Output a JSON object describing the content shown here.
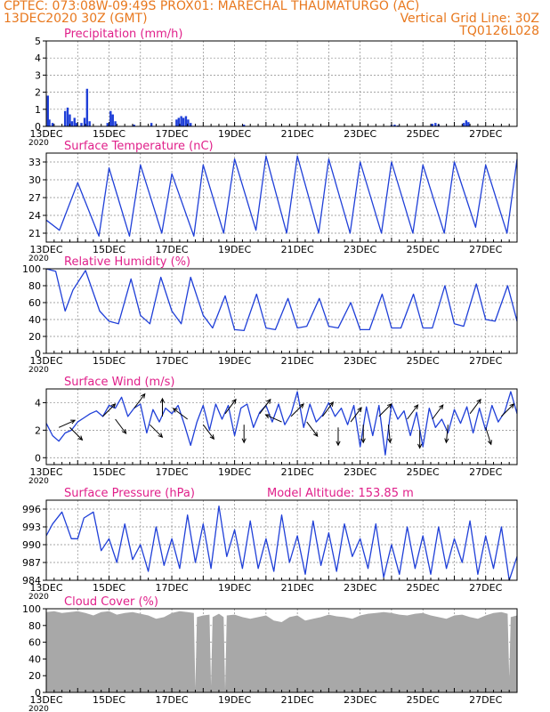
{
  "header": {
    "left_line1": "CPTEC:   073:08W-09:49S   PROX01: MARECHAL THAUMATURGO (AC)",
    "left_line2": "13DEC2020 30Z (GMT)",
    "right_line2": "Vertical Grid Line: 30Z",
    "right_line3": "TQ0126L028"
  },
  "colors": {
    "header": "#e8781e",
    "titles": "#e0208a",
    "series": "#1f3fd8",
    "cloud": "#a8a8a8",
    "arrow": "#000000",
    "grid": "#888888"
  },
  "x_axis": {
    "start_day": 13,
    "end_day": 28,
    "tick_labels": [
      "13DEC",
      "15DEC",
      "17DEC",
      "19DEC",
      "21DEC",
      "23DEC",
      "25DEC",
      "27DEC"
    ],
    "year_label": "2020"
  },
  "chart_data": [
    {
      "type": "bar",
      "title": "Precipitation (mm/h)",
      "ylim": [
        0,
        5
      ],
      "yticks": [
        "0",
        "1",
        "2",
        "3",
        "4",
        "5"
      ],
      "grid": true,
      "bars": [
        {
          "x": 13.05,
          "y": 1.8
        },
        {
          "x": 13.1,
          "y": 0.4
        },
        {
          "x": 13.2,
          "y": 0.2
        },
        {
          "x": 13.6,
          "y": 0.9
        },
        {
          "x": 13.68,
          "y": 1.1
        },
        {
          "x": 13.75,
          "y": 0.7
        },
        {
          "x": 13.82,
          "y": 0.3
        },
        {
          "x": 13.9,
          "y": 0.5
        },
        {
          "x": 13.97,
          "y": 0.2
        },
        {
          "x": 14.12,
          "y": 0.2
        },
        {
          "x": 14.22,
          "y": 0.5
        },
        {
          "x": 14.3,
          "y": 2.2
        },
        {
          "x": 14.38,
          "y": 0.3
        },
        {
          "x": 14.95,
          "y": 0.2
        },
        {
          "x": 15.05,
          "y": 0.9
        },
        {
          "x": 15.12,
          "y": 0.7
        },
        {
          "x": 15.2,
          "y": 0.3
        },
        {
          "x": 15.8,
          "y": 0.1
        },
        {
          "x": 16.35,
          "y": 0.2
        },
        {
          "x": 17.15,
          "y": 0.4
        },
        {
          "x": 17.22,
          "y": 0.5
        },
        {
          "x": 17.3,
          "y": 0.6
        },
        {
          "x": 17.37,
          "y": 0.5
        },
        {
          "x": 17.45,
          "y": 0.6
        },
        {
          "x": 17.52,
          "y": 0.4
        },
        {
          "x": 17.6,
          "y": 0.2
        },
        {
          "x": 19.3,
          "y": 0.1
        },
        {
          "x": 24.0,
          "y": 0.08
        },
        {
          "x": 24.1,
          "y": 0.1
        },
        {
          "x": 24.2,
          "y": 0.05
        },
        {
          "x": 25.3,
          "y": 0.15
        },
        {
          "x": 25.4,
          "y": 0.2
        },
        {
          "x": 25.5,
          "y": 0.12
        },
        {
          "x": 26.3,
          "y": 0.2
        },
        {
          "x": 26.38,
          "y": 0.35
        },
        {
          "x": 26.45,
          "y": 0.25
        }
      ]
    },
    {
      "type": "line",
      "title": "Surface Temperature (nC)",
      "ylim": [
        19.5,
        34.5
      ],
      "yticks": [
        "21",
        "24",
        "27",
        "30",
        "33"
      ],
      "ytick_values": [
        21,
        24,
        27,
        30,
        33
      ],
      "grid": true,
      "series": [
        {
          "x": [
            13.0,
            13.42,
            14.0,
            14.68,
            15.0,
            15.65,
            16.0,
            16.68,
            17.0,
            17.7,
            18.0,
            18.65,
            19.0,
            19.68,
            20.0,
            20.66,
            21.0,
            21.68,
            22.0,
            22.68,
            23.0,
            23.68,
            24.0,
            24.68,
            25.0,
            25.68,
            26.0,
            26.68,
            27.0,
            27.68,
            28.0
          ],
          "y": [
            23.2,
            21.5,
            29.5,
            20.5,
            32.0,
            20.5,
            32.5,
            21.0,
            31.0,
            20.5,
            32.5,
            21.0,
            33.5,
            21.5,
            34.0,
            21.0,
            34.0,
            21.0,
            33.5,
            21.0,
            33.0,
            21.0,
            33.0,
            21.0,
            32.5,
            21.0,
            33.0,
            22.0,
            32.5,
            21.0,
            33.5
          ]
        }
      ]
    },
    {
      "type": "line",
      "title": "Relative Humidity (%)",
      "ylim": [
        0,
        100
      ],
      "yticks": [
        "0",
        "20",
        "40",
        "60",
        "80",
        "100"
      ],
      "ytick_values": [
        0,
        20,
        40,
        60,
        80,
        100
      ],
      "grid": true,
      "series": [
        {
          "x": [
            13.0,
            13.3,
            13.6,
            13.85,
            14.25,
            14.7,
            15.0,
            15.3,
            15.7,
            16.0,
            16.3,
            16.65,
            17.0,
            17.3,
            17.6,
            18.0,
            18.3,
            18.7,
            19.0,
            19.3,
            19.7,
            20.0,
            20.3,
            20.7,
            21.0,
            21.3,
            21.7,
            22.0,
            22.3,
            22.7,
            23.0,
            23.3,
            23.7,
            24.0,
            24.3,
            24.7,
            25.0,
            25.3,
            25.7,
            26.0,
            26.3,
            26.7,
            27.0,
            27.3,
            27.7,
            28.0
          ],
          "y": [
            100,
            97,
            50,
            75,
            98,
            50,
            38,
            35,
            88,
            45,
            35,
            90,
            50,
            35,
            90,
            45,
            30,
            68,
            28,
            27,
            70,
            30,
            28,
            65,
            30,
            32,
            65,
            32,
            30,
            60,
            28,
            28,
            70,
            30,
            30,
            70,
            30,
            30,
            80,
            35,
            32,
            82,
            40,
            38,
            80,
            38
          ]
        }
      ]
    },
    {
      "type": "line",
      "title": "Surface Wind (m/s)",
      "ylim": [
        -0.5,
        5
      ],
      "yticks": [
        "0",
        "2",
        "4"
      ],
      "ytick_values": [
        0,
        2,
        4
      ],
      "grid": true,
      "series": [
        {
          "x": [
            13.0,
            13.2,
            13.4,
            13.6,
            13.8,
            14.0,
            14.2,
            14.4,
            14.6,
            14.8,
            15.0,
            15.2,
            15.4,
            15.6,
            15.8,
            16.0,
            16.2,
            16.4,
            16.6,
            16.8,
            17.0,
            17.2,
            17.4,
            17.6,
            17.8,
            18.0,
            18.2,
            18.4,
            18.6,
            18.8,
            19.0,
            19.2,
            19.4,
            19.6,
            19.8,
            20.0,
            20.2,
            20.4,
            20.6,
            20.8,
            21.0,
            21.2,
            21.4,
            21.6,
            21.8,
            22.0,
            22.2,
            22.4,
            22.6,
            22.8,
            23.0,
            23.2,
            23.4,
            23.6,
            23.8,
            24.0,
            24.2,
            24.4,
            24.6,
            24.8,
            25.0,
            25.2,
            25.4,
            25.6,
            25.8,
            26.0,
            26.2,
            26.4,
            26.6,
            26.8,
            27.0,
            27.2,
            27.4,
            27.6,
            27.8,
            28.0
          ],
          "y": [
            2.5,
            1.6,
            1.2,
            1.8,
            2.0,
            2.6,
            2.9,
            3.2,
            3.4,
            3.0,
            3.8,
            3.6,
            4.4,
            3.0,
            3.6,
            3.9,
            1.8,
            3.5,
            2.6,
            3.6,
            3.2,
            3.8,
            2.4,
            0.9,
            2.6,
            3.8,
            2.0,
            3.9,
            2.8,
            3.8,
            1.6,
            3.6,
            3.9,
            2.2,
            3.3,
            3.8,
            2.6,
            3.9,
            2.4,
            3.2,
            4.8,
            2.2,
            3.9,
            2.6,
            3.1,
            4.0,
            3.0,
            3.6,
            2.4,
            3.8,
            0.8,
            3.7,
            1.6,
            3.8,
            0.2,
            3.9,
            2.8,
            3.4,
            1.6,
            3.3,
            0.8,
            3.6,
            2.2,
            2.8,
            1.8,
            3.5,
            2.5,
            3.7,
            1.8,
            3.6,
            2.0,
            3.8,
            2.6,
            3.3,
            4.8,
            3.2
          ]
        }
      ],
      "vectors": [
        {
          "x": 13.4,
          "speed": 2.2,
          "dx": 0.9,
          "dy": 0.4
        },
        {
          "x": 13.75,
          "speed": 2.2,
          "dx": 0.7,
          "dy": -0.7
        },
        {
          "x": 14.8,
          "speed": 3.0,
          "dx": 0.7,
          "dy": 0.7
        },
        {
          "x": 15.2,
          "speed": 2.8,
          "dx": 0.6,
          "dy": -0.8
        },
        {
          "x": 15.8,
          "speed": 3.6,
          "dx": 0.6,
          "dy": 0.8
        },
        {
          "x": 16.3,
          "speed": 2.4,
          "dx": 0.7,
          "dy": -0.7
        },
        {
          "x": 16.7,
          "speed": 3.0,
          "dx": 0.0,
          "dy": 1.0
        },
        {
          "x": 17.5,
          "speed": 2.8,
          "dx": -0.8,
          "dy": 0.6
        },
        {
          "x": 18.0,
          "speed": 2.4,
          "dx": 0.6,
          "dy": -0.8
        },
        {
          "x": 18.7,
          "speed": 3.2,
          "dx": 0.6,
          "dy": 0.8
        },
        {
          "x": 19.3,
          "speed": 2.4,
          "dx": 0.0,
          "dy": -1.0
        },
        {
          "x": 19.8,
          "speed": 3.2,
          "dx": 0.6,
          "dy": 0.8
        },
        {
          "x": 20.5,
          "speed": 2.6,
          "dx": -0.9,
          "dy": 0.4
        },
        {
          "x": 20.8,
          "speed": 3.0,
          "dx": 0.7,
          "dy": 0.7
        },
        {
          "x": 21.3,
          "speed": 2.6,
          "dx": 0.6,
          "dy": -0.8
        },
        {
          "x": 21.8,
          "speed": 3.0,
          "dx": 0.6,
          "dy": 0.8
        },
        {
          "x": 22.3,
          "speed": 2.2,
          "dx": 0.0,
          "dy": -1.0
        },
        {
          "x": 22.7,
          "speed": 2.6,
          "dx": 0.6,
          "dy": 0.8
        },
        {
          "x": 23.1,
          "speed": 2.4,
          "dx": 0.0,
          "dy": -1.0
        },
        {
          "x": 23.6,
          "speed": 3.0,
          "dx": 0.7,
          "dy": 0.7
        },
        {
          "x": 23.9,
          "speed": 2.4,
          "dx": 0.1,
          "dy": -1.0
        },
        {
          "x": 24.5,
          "speed": 2.8,
          "dx": 0.6,
          "dy": 0.8
        },
        {
          "x": 24.9,
          "speed": 2.0,
          "dx": 0.0,
          "dy": -1.0
        },
        {
          "x": 25.3,
          "speed": 2.8,
          "dx": 0.6,
          "dy": 0.8
        },
        {
          "x": 25.8,
          "speed": 2.4,
          "dx": -0.1,
          "dy": -1.0
        },
        {
          "x": 26.5,
          "speed": 3.2,
          "dx": 0.6,
          "dy": 0.8
        },
        {
          "x": 27.0,
          "speed": 2.2,
          "dx": 0.3,
          "dy": -0.95
        },
        {
          "x": 27.5,
          "speed": 3.0,
          "dx": 0.7,
          "dy": 0.7
        }
      ]
    },
    {
      "type": "line",
      "title": "Surface Pressure (hPa)",
      "annotation": "Model Altitude: 153.85 m",
      "ylim": [
        984,
        997.5
      ],
      "yticks": [
        "984",
        "987",
        "990",
        "993",
        "996"
      ],
      "ytick_values": [
        984,
        987,
        990,
        993,
        996
      ],
      "grid": true,
      "series": [
        {
          "x": [
            13.0,
            13.2,
            13.5,
            13.8,
            14.0,
            14.2,
            14.5,
            14.75,
            15.0,
            15.25,
            15.5,
            15.75,
            16.0,
            16.25,
            16.5,
            16.75,
            17.0,
            17.25,
            17.5,
            17.75,
            18.0,
            18.25,
            18.5,
            18.75,
            19.0,
            19.25,
            19.5,
            19.75,
            20.0,
            20.25,
            20.5,
            20.75,
            21.0,
            21.25,
            21.5,
            21.75,
            22.0,
            22.25,
            22.5,
            22.75,
            23.0,
            23.25,
            23.5,
            23.75,
            24.0,
            24.25,
            24.5,
            24.75,
            25.0,
            25.25,
            25.5,
            25.75,
            26.0,
            26.25,
            26.5,
            26.75,
            27.0,
            27.25,
            27.5,
            27.75,
            28.0
          ],
          "y": [
            991.5,
            993.5,
            995.5,
            991.0,
            991.0,
            994.5,
            995.5,
            989.0,
            991.0,
            987.0,
            993.5,
            987.5,
            990.0,
            985.5,
            993.0,
            986.5,
            991.0,
            986.0,
            995.0,
            987.0,
            993.5,
            986.0,
            996.5,
            988.0,
            992.5,
            986.0,
            994.0,
            986.0,
            991.0,
            985.5,
            995.0,
            987.0,
            991.5,
            985.0,
            994.0,
            986.5,
            992.0,
            985.5,
            993.5,
            988.0,
            991.0,
            986.0,
            993.5,
            984.5,
            990.0,
            985.0,
            993.0,
            986.0,
            991.5,
            985.0,
            993.0,
            986.0,
            991.0,
            987.0,
            994.0,
            985.0,
            991.5,
            986.0,
            993.0,
            984.0,
            988.0
          ]
        }
      ]
    },
    {
      "type": "area",
      "title": "Cloud Cover (%)",
      "ylim": [
        0,
        100
      ],
      "yticks": [
        "0",
        "20",
        "40",
        "60",
        "80",
        "100"
      ],
      "ytick_values": [
        0,
        20,
        40,
        60,
        80,
        100
      ],
      "grid": true,
      "series": [
        {
          "x": [
            13.0,
            13.25,
            13.5,
            13.75,
            14.0,
            14.25,
            14.5,
            14.75,
            15.0,
            15.25,
            15.5,
            15.75,
            16.0,
            16.25,
            16.5,
            16.75,
            17.0,
            17.25,
            17.5,
            17.7,
            17.75,
            17.8,
            18.0,
            18.2,
            18.25,
            18.3,
            18.5,
            18.65,
            18.7,
            18.75,
            19.0,
            19.25,
            19.5,
            19.75,
            20.0,
            20.25,
            20.5,
            20.75,
            21.0,
            21.25,
            21.5,
            21.75,
            22.0,
            22.25,
            22.5,
            22.75,
            23.0,
            23.25,
            23.5,
            23.75,
            24.0,
            24.25,
            24.5,
            24.75,
            25.0,
            25.25,
            25.5,
            25.75,
            26.0,
            26.25,
            26.5,
            26.75,
            27.0,
            27.25,
            27.5,
            27.7,
            27.75,
            27.8,
            28.0
          ],
          "y": [
            96,
            97,
            95,
            96,
            97,
            95,
            92,
            96,
            97,
            93,
            95,
            96,
            94,
            92,
            88,
            90,
            95,
            97,
            96,
            95,
            5,
            90,
            92,
            93,
            8,
            90,
            94,
            90,
            3,
            92,
            93,
            90,
            88,
            90,
            92,
            86,
            84,
            90,
            92,
            86,
            88,
            90,
            93,
            91,
            90,
            88,
            92,
            94,
            95,
            96,
            95,
            93,
            92,
            94,
            95,
            92,
            90,
            88,
            92,
            93,
            90,
            88,
            92,
            95,
            96,
            94,
            18,
            90,
            92
          ]
        }
      ]
    }
  ]
}
